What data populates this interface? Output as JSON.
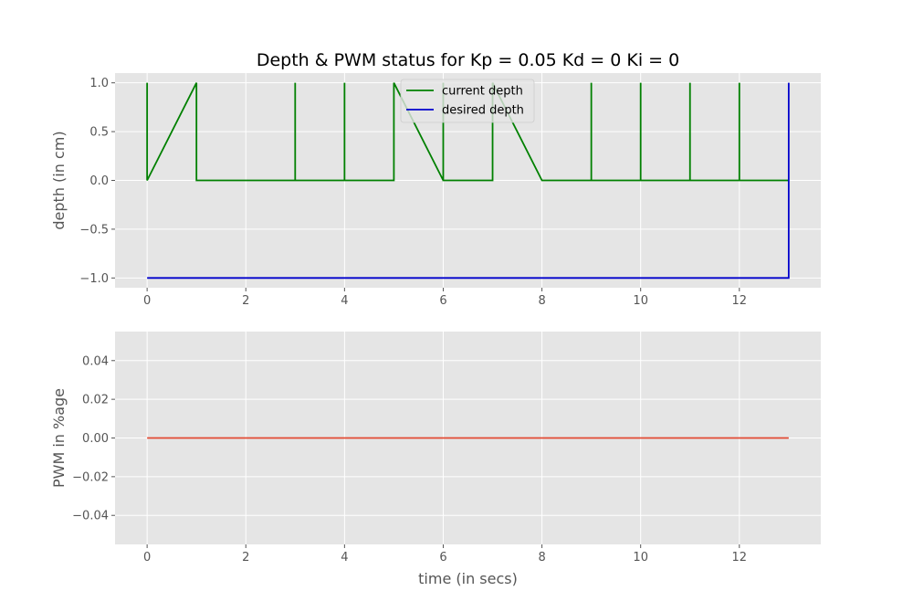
{
  "chart_data": [
    {
      "type": "line",
      "title": "Depth & PWM status for Kp = 0.05 Kd = 0 Ki = 0",
      "xlabel": "",
      "ylabel": "depth (in cm)",
      "xlim": [
        -0.65,
        13.65
      ],
      "ylim": [
        -1.1,
        1.1
      ],
      "xticks": [
        0,
        2,
        4,
        6,
        8,
        10,
        12
      ],
      "yticks": [
        -1.0,
        -0.5,
        0.0,
        0.5,
        1.0
      ],
      "ytick_labels": [
        "−1.0",
        "−0.5",
        "0.0",
        "0.5",
        "1.0"
      ],
      "grid": true,
      "legend": "upper center",
      "series": [
        {
          "name": "current depth",
          "color": "#008000",
          "x": [
            0,
            0,
            0,
            1,
            1,
            3,
            3,
            3,
            4,
            4,
            4,
            5,
            5,
            6,
            6,
            6,
            6,
            7,
            7,
            8,
            9,
            9,
            9,
            10,
            10,
            10,
            11,
            11,
            11,
            12,
            12,
            12,
            13
          ],
          "y": [
            1,
            0,
            0,
            1,
            0,
            0,
            1,
            0,
            0,
            1,
            0,
            0,
            1,
            0,
            1,
            0,
            0,
            0,
            1,
            0,
            0,
            1,
            0,
            0,
            1,
            0,
            0,
            1,
            0,
            0,
            1,
            0,
            0
          ]
        },
        {
          "name": "desired depth",
          "color": "#0000cc",
          "x": [
            0,
            13,
            13
          ],
          "y": [
            -1,
            -1,
            1
          ]
        }
      ]
    },
    {
      "type": "line",
      "title": "",
      "xlabel": "time (in secs)",
      "ylabel": "PWM in %age",
      "xlim": [
        -0.65,
        13.65
      ],
      "ylim": [
        -0.055,
        0.055
      ],
      "xticks": [
        0,
        2,
        4,
        6,
        8,
        10,
        12
      ],
      "yticks": [
        -0.04,
        -0.02,
        0.0,
        0.02,
        0.04
      ],
      "ytick_labels": [
        "−0.04",
        "−0.02",
        "0.00",
        "0.02",
        "0.04"
      ],
      "grid": true,
      "series": [
        {
          "color": "#e24a33",
          "x": [
            0,
            13
          ],
          "y": [
            0,
            0
          ]
        }
      ]
    }
  ]
}
